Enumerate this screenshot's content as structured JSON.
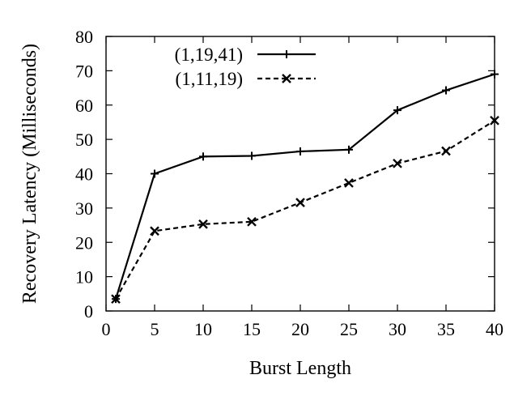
{
  "chart_data": {
    "type": "line",
    "xlabel": "Burst Length",
    "ylabel": "Recovery Latency (Milliseconds)",
    "xlim": [
      0,
      40
    ],
    "ylim": [
      0,
      80
    ],
    "xticks": [
      0,
      5,
      10,
      15,
      20,
      25,
      30,
      35,
      40
    ],
    "yticks": [
      0,
      10,
      20,
      30,
      40,
      50,
      60,
      70,
      80
    ],
    "grid": false,
    "legend_position": "top-left",
    "series": [
      {
        "name": "(1,19,41)",
        "marker": "plus",
        "line_style": "solid",
        "color": "#000000",
        "x": [
          1,
          5,
          10,
          15,
          20,
          25,
          30,
          35,
          40
        ],
        "y": [
          3.5,
          40,
          45,
          45.2,
          46.5,
          47,
          58.5,
          64.3,
          69
        ]
      },
      {
        "name": "(1,11,19)",
        "marker": "cross",
        "line_style": "dashed",
        "color": "#000000",
        "x": [
          1,
          5,
          10,
          15,
          20,
          25,
          30,
          35,
          40
        ],
        "y": [
          3.5,
          23.3,
          25.3,
          26,
          31.6,
          37.3,
          43,
          46.6,
          55.5
        ]
      }
    ]
  }
}
